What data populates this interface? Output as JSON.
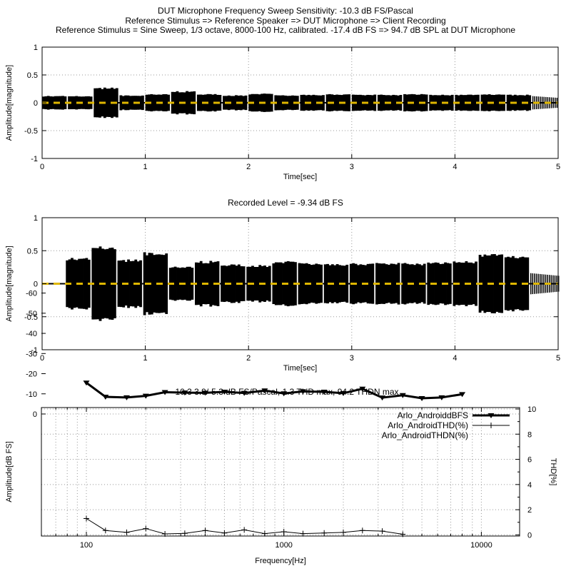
{
  "header": {
    "line1": "DUT Microphone Frequency Sweep Sensitivity: -10.3 dB FS/Pascal",
    "line2": "Reference Stimulus => Reference Speaker => DUT Microphone => Client Recording",
    "line3": "Reference Stimulus = Sine Sweep, 1/3 octave, 8000-100 Hz, calibrated. -17.4 dB FS => 94.7 dB SPL at DUT Microphone"
  },
  "chart_data": [
    {
      "type": "area",
      "name": "stimulus-waveform",
      "title": "",
      "xlabel": "Time[sec]",
      "ylabel": "Amplitude[magnitude]",
      "xlim": [
        0,
        5
      ],
      "ylim": [
        -1,
        1
      ],
      "xticks": [
        0,
        1,
        2,
        3,
        4,
        5
      ],
      "yticks": [
        1,
        0.5,
        0,
        -0.5,
        -1
      ],
      "grid": true,
      "zero_line_color": "#dfb700",
      "waveform_color": "#000000",
      "segment_duration_sec": 0.25,
      "segments": [
        {
          "t0": 0.0,
          "t1": 0.235,
          "amp": 0.12
        },
        {
          "t0": 0.25,
          "t1": 0.485,
          "amp": 0.12
        },
        {
          "t0": 0.5,
          "t1": 0.735,
          "amp": 0.26
        },
        {
          "t0": 0.75,
          "t1": 0.985,
          "amp": 0.13
        },
        {
          "t0": 1.0,
          "t1": 1.235,
          "amp": 0.15
        },
        {
          "t0": 1.25,
          "t1": 1.485,
          "amp": 0.2
        },
        {
          "t0": 1.5,
          "t1": 1.735,
          "amp": 0.15
        },
        {
          "t0": 1.75,
          "t1": 1.985,
          "amp": 0.13
        },
        {
          "t0": 2.0,
          "t1": 2.235,
          "amp": 0.16
        },
        {
          "t0": 2.25,
          "t1": 2.485,
          "amp": 0.13
        },
        {
          "t0": 2.5,
          "t1": 2.735,
          "amp": 0.14
        },
        {
          "t0": 2.75,
          "t1": 2.985,
          "amp": 0.15
        },
        {
          "t0": 3.0,
          "t1": 3.235,
          "amp": 0.14
        },
        {
          "t0": 3.25,
          "t1": 3.485,
          "amp": 0.14
        },
        {
          "t0": 3.5,
          "t1": 3.735,
          "amp": 0.15
        },
        {
          "t0": 3.75,
          "t1": 3.985,
          "amp": 0.14
        },
        {
          "t0": 4.0,
          "t1": 4.235,
          "amp": 0.14
        },
        {
          "t0": 4.25,
          "t1": 4.485,
          "amp": 0.15
        },
        {
          "t0": 4.5,
          "t1": 4.735,
          "amp": 0.14
        }
      ],
      "tail": {
        "t0": 4.75,
        "t1": 5.0,
        "amp": 0.12
      }
    },
    {
      "type": "area",
      "name": "recorded-waveform",
      "title": "Recorded Level = -9.34 dB FS",
      "xlabel": "Time[sec]",
      "ylabel": "Amplitude[magnitude]",
      "xlim": [
        0,
        5
      ],
      "ylim": [
        -1,
        1
      ],
      "xticks": [
        0,
        1,
        2,
        3,
        4,
        5
      ],
      "yticks": [
        1,
        0.5,
        0,
        -0.5,
        -1
      ],
      "grid": true,
      "zero_line_color": "#dfb700",
      "waveform_color": "#000000",
      "silence_until_sec": 0.23,
      "segments": [
        {
          "t0": 0.23,
          "t1": 0.465,
          "amp": 0.38
        },
        {
          "t0": 0.48,
          "t1": 0.715,
          "amp": 0.56
        },
        {
          "t0": 0.73,
          "t1": 0.965,
          "amp": 0.35
        },
        {
          "t0": 0.98,
          "t1": 1.215,
          "amp": 0.46
        },
        {
          "t0": 1.23,
          "t1": 1.465,
          "amp": 0.25
        },
        {
          "t0": 1.48,
          "t1": 1.715,
          "amp": 0.33
        },
        {
          "t0": 1.73,
          "t1": 1.965,
          "amp": 0.28
        },
        {
          "t0": 1.98,
          "t1": 2.215,
          "amp": 0.27
        },
        {
          "t0": 2.23,
          "t1": 2.465,
          "amp": 0.33
        },
        {
          "t0": 2.48,
          "t1": 2.715,
          "amp": 0.3
        },
        {
          "t0": 2.73,
          "t1": 2.965,
          "amp": 0.29
        },
        {
          "t0": 2.98,
          "t1": 3.215,
          "amp": 0.3
        },
        {
          "t0": 3.23,
          "t1": 3.465,
          "amp": 0.3
        },
        {
          "t0": 3.48,
          "t1": 3.715,
          "amp": 0.3
        },
        {
          "t0": 3.73,
          "t1": 3.965,
          "amp": 0.31
        },
        {
          "t0": 3.98,
          "t1": 4.215,
          "amp": 0.33
        },
        {
          "t0": 4.23,
          "t1": 4.465,
          "amp": 0.43
        },
        {
          "t0": 4.48,
          "t1": 4.715,
          "amp": 0.41
        }
      ],
      "tail": {
        "t0": 4.73,
        "t1": 5.0,
        "amp": 0.16
      }
    },
    {
      "type": "line",
      "name": "sensitivity-vs-frequency",
      "title": "-10.3 3.9/-5.3 dB FS/Pascal, 1.3 THD max, 94.2 THDN max",
      "xlabel": "Frequency[Hz]",
      "ylabel_left": "Amplitude[dB FS]",
      "ylabel_right": "THD[%]",
      "x_scale": "log",
      "xlim": [
        60,
        16000
      ],
      "ylim_left": [
        -61,
        3.3
      ],
      "ylim_right": [
        0,
        10
      ],
      "xticks": [
        100,
        1000,
        10000
      ],
      "xtick_labels": [
        "100",
        "1000",
        "10000"
      ],
      "yticks_left": [
        0,
        -10,
        -20,
        -30,
        -40,
        -50,
        -60
      ],
      "yticks_right": [
        0,
        2,
        4,
        6,
        8,
        10
      ],
      "grid": true,
      "legend_position": "top-right",
      "series": [
        {
          "name": "Arlo_AndroiddBFS",
          "axis": "left",
          "marker": "triangle-down",
          "line_width": 3,
          "color": "#000000",
          "x": [
            100,
            125,
            160,
            200,
            250,
            315,
            400,
            500,
            630,
            800,
            1000,
            1250,
            1600,
            2000,
            2500,
            3150,
            4000,
            5000,
            6300,
            8000
          ],
          "y": [
            -15.5,
            -8.5,
            -8.2,
            -9.0,
            -10.8,
            -10.6,
            -10.5,
            -11.0,
            -10.4,
            -11.6,
            -10.2,
            -11.2,
            -11.0,
            -10.3,
            -12.5,
            -8.1,
            -9.3,
            -7.8,
            -8.2,
            -9.8
          ]
        },
        {
          "name": "Arlo_AndroidTHD(%)",
          "axis": "right",
          "marker": "plus",
          "line_width": 1,
          "color": "#000000",
          "x": [
            100,
            125,
            160,
            200,
            250,
            315,
            400,
            500,
            630,
            800,
            1000,
            1250,
            1600,
            2000,
            2500,
            3150,
            4000
          ],
          "y": [
            1.3,
            0.35,
            0.2,
            0.5,
            0.08,
            0.12,
            0.35,
            0.15,
            0.4,
            0.1,
            0.25,
            0.1,
            0.15,
            0.2,
            0.35,
            0.3,
            0.05
          ]
        },
        {
          "name": "Arlo_AndroidTHDN(%)",
          "axis": "right",
          "marker": "none",
          "line_width": 1,
          "color": "#000000",
          "x": [],
          "y": []
        }
      ],
      "legend": [
        "Arlo_AndroiddBFS",
        "Arlo_AndroidTHD(%)",
        "Arlo_AndroidTHDN(%)"
      ]
    }
  ]
}
